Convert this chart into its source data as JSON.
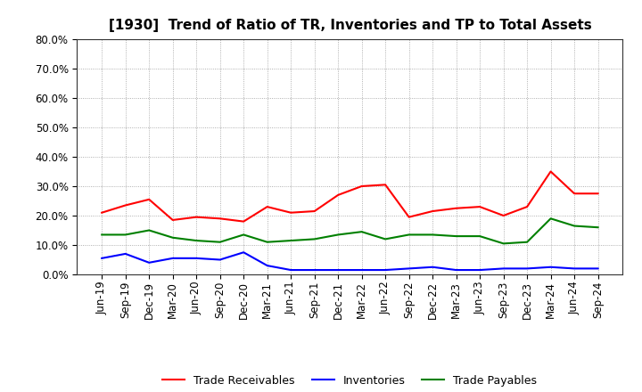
{
  "title": "[1930]  Trend of Ratio of TR, Inventories and TP to Total Assets",
  "x_labels": [
    "Jun-19",
    "Sep-19",
    "Dec-19",
    "Mar-20",
    "Jun-20",
    "Sep-20",
    "Dec-20",
    "Mar-21",
    "Jun-21",
    "Sep-21",
    "Dec-21",
    "Mar-22",
    "Jun-22",
    "Sep-22",
    "Dec-22",
    "Mar-23",
    "Jun-23",
    "Sep-23",
    "Dec-23",
    "Mar-24",
    "Jun-24",
    "Sep-24"
  ],
  "trade_receivables": [
    21.0,
    23.5,
    25.5,
    18.5,
    19.5,
    19.0,
    18.0,
    23.0,
    21.0,
    21.5,
    27.0,
    30.0,
    30.5,
    19.5,
    21.5,
    22.5,
    23.0,
    20.0,
    23.0,
    35.0,
    27.5,
    27.5
  ],
  "inventories": [
    5.5,
    7.0,
    4.0,
    5.5,
    5.5,
    5.0,
    7.5,
    3.0,
    1.5,
    1.5,
    1.5,
    1.5,
    1.5,
    2.0,
    2.5,
    1.5,
    1.5,
    2.0,
    2.0,
    2.5,
    2.0,
    2.0
  ],
  "trade_payables": [
    13.5,
    13.5,
    15.0,
    12.5,
    11.5,
    11.0,
    13.5,
    11.0,
    11.5,
    12.0,
    13.5,
    14.5,
    12.0,
    13.5,
    13.5,
    13.0,
    13.0,
    10.5,
    11.0,
    19.0,
    16.5,
    16.0
  ],
  "tr_color": "#ff0000",
  "inv_color": "#0000ff",
  "tp_color": "#008000",
  "ylim": [
    0.0,
    80.0
  ],
  "yticks": [
    0.0,
    10.0,
    20.0,
    30.0,
    40.0,
    50.0,
    60.0,
    70.0,
    80.0
  ],
  "legend_labels": [
    "Trade Receivables",
    "Inventories",
    "Trade Payables"
  ],
  "bg_color": "#ffffff",
  "grid_color": "#999999",
  "title_fontsize": 11,
  "tick_fontsize": 8.5,
  "legend_fontsize": 9,
  "line_width": 1.5
}
